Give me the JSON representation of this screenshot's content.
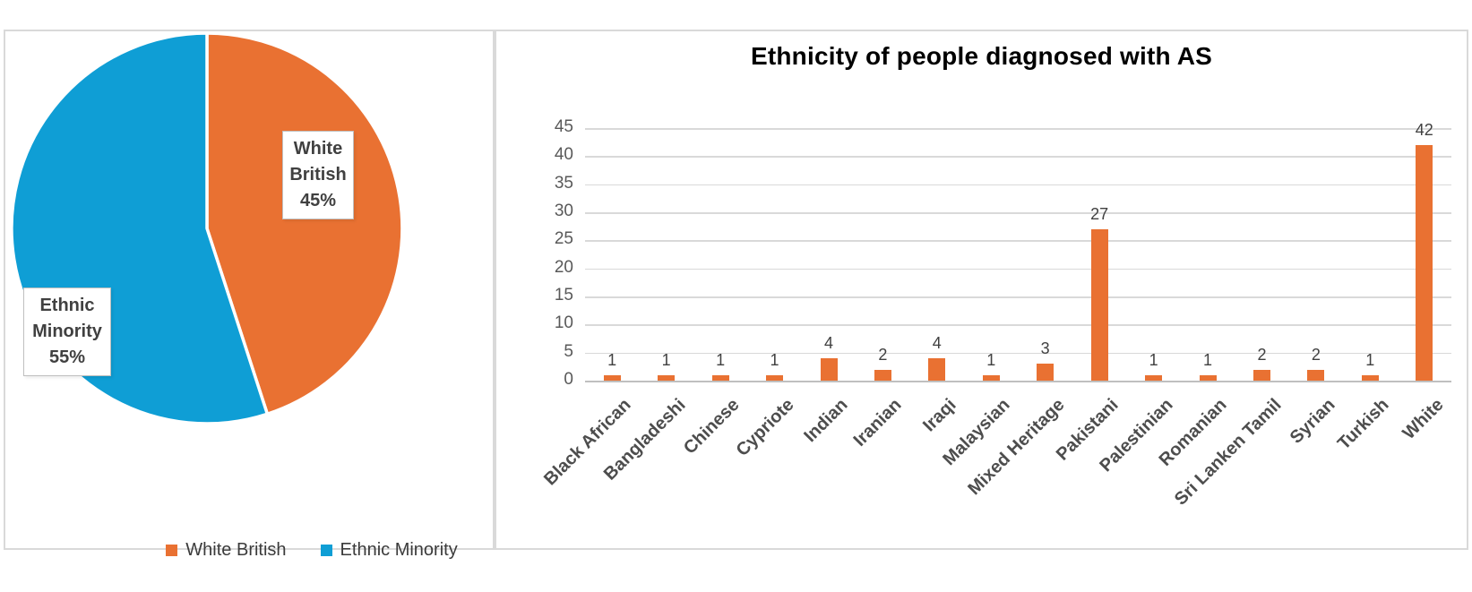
{
  "colors": {
    "orange": "#E97132",
    "blue": "#0F9ED5",
    "gridline": "#D9D9D9",
    "axis_text": "#595959",
    "label_text": "#404040"
  },
  "chart_data": [
    {
      "type": "pie",
      "title": "",
      "legend_position": "bottom",
      "slices": [
        {
          "label": "White British",
          "value": 45,
          "pct_text": "45%",
          "color": "#E97132",
          "callout_lines": [
            "White",
            "British",
            "45%"
          ]
        },
        {
          "label": "Ethnic Minority",
          "value": 55,
          "pct_text": "55%",
          "color": "#0F9ED5",
          "callout_lines": [
            "Ethnic",
            "Minority",
            "55%"
          ]
        }
      ]
    },
    {
      "type": "bar",
      "title": "Ethnicity of people diagnosed with AS",
      "categories": [
        "Black African",
        "Bangladeshi",
        "Chinese",
        "Cypriote",
        "Indian",
        "Iranian",
        "Iraqi",
        "Malaysian",
        "Mixed Heritage",
        "Pakistani",
        "Palestinian",
        "Romanian",
        "Sri Lanken Tamil",
        "Syrian",
        "Turkish",
        "White"
      ],
      "values": [
        1,
        1,
        1,
        1,
        4,
        2,
        4,
        1,
        3,
        27,
        1,
        1,
        2,
        2,
        1,
        42
      ],
      "bar_color": "#E97132",
      "xlabel": "",
      "ylabel": "",
      "ylim": [
        0,
        45
      ],
      "ytick_step": 5,
      "grid": true,
      "legend_position": "none"
    }
  ]
}
